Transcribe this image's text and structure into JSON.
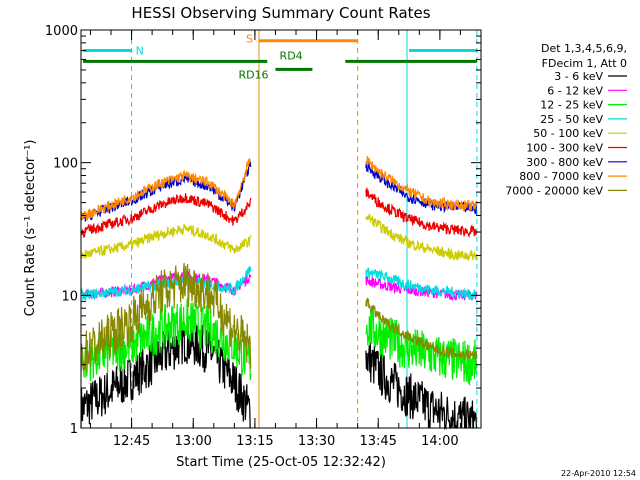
{
  "chart_data": {
    "type": "line",
    "title": "HESSI Observing Summary Count Rates",
    "xlabel": "Start Time (25-Oct-05 12:32:42)",
    "ylabel": "Count Rate (s⁻¹ detector⁻¹)",
    "y_scale": "log",
    "ylim": [
      1,
      1000
    ],
    "xlim": [
      "12:32:42",
      "14:10:00"
    ],
    "x_ticks": [
      "12:45",
      "13:00",
      "13:15",
      "13:30",
      "13:45",
      "14:00"
    ],
    "y_ticks": [
      "1",
      "10",
      "100",
      "1000"
    ],
    "legend_header": [
      "Det 1,3,4,5,6,9,",
      "FDecim 1, Att 0"
    ],
    "legend_position": "right",
    "series": [
      {
        "name": "3 - 6 keV",
        "color": "#000000",
        "segments": [
          {
            "x": [
              "12:32:42",
              "12:45",
              "12:52",
              "12:58",
              "13:04",
              "13:10",
              "13:14"
            ],
            "y": [
              1.4,
              2.4,
              3.4,
              4.6,
              3.8,
              2.2,
              1.3
            ]
          },
          {
            "x": [
              "13:42",
              "13:46",
              "13:52",
              "13:58",
              "14:04",
              "14:09"
            ],
            "y": [
              3.5,
              2.5,
              1.8,
              1.4,
              1.2,
              1.1
            ]
          }
        ]
      },
      {
        "name": "6 - 12 keV",
        "color": "#ff00ff",
        "segments": [
          {
            "x": [
              "12:32:42",
              "12:45",
              "12:52",
              "12:58",
              "13:04",
              "13:10",
              "13:14"
            ],
            "y": [
              10,
              11,
              13,
              14,
              13,
              11,
              14
            ]
          },
          {
            "x": [
              "13:42",
              "13:46",
              "13:52",
              "13:58",
              "14:04",
              "14:09"
            ],
            "y": [
              13,
              12,
              11,
              10.5,
              10,
              10
            ]
          }
        ]
      },
      {
        "name": "12 - 25 keV",
        "color": "#00ee00",
        "segments": [
          {
            "x": [
              "12:32:42",
              "12:45",
              "12:52",
              "12:58",
              "13:04",
              "13:10",
              "13:14"
            ],
            "y": [
              3.2,
              4.2,
              5.5,
              6.5,
              5.5,
              4.2,
              3.0
            ]
          },
          {
            "x": [
              "13:42",
              "13:46",
              "13:52",
              "13:58",
              "14:04",
              "14:09"
            ],
            "y": [
              6.0,
              5.0,
              4.0,
              3.5,
              3.2,
              3.1
            ]
          }
        ]
      },
      {
        "name": "25 - 50 keV",
        "color": "#00dddd",
        "segments": [
          {
            "x": [
              "12:32:42",
              "12:45",
              "12:52",
              "12:58",
              "13:04",
              "13:10",
              "13:14"
            ],
            "y": [
              10,
              11,
              12,
              13,
              12,
              11,
              16
            ]
          },
          {
            "x": [
              "13:42",
              "13:46",
              "13:52",
              "13:58",
              "14:04",
              "14:09"
            ],
            "y": [
              15,
              14,
              12,
              11,
              10.5,
              10
            ]
          }
        ]
      },
      {
        "name": "50 - 100 keV",
        "color": "#cccc00",
        "segments": [
          {
            "x": [
              "12:32:42",
              "12:45",
              "12:52",
              "12:58",
              "13:04",
              "13:10",
              "13:14"
            ],
            "y": [
              20,
              24,
              29,
              32,
              28,
              22,
              26
            ]
          },
          {
            "x": [
              "13:42",
              "13:46",
              "13:52",
              "13:58",
              "14:04",
              "14:09"
            ],
            "y": [
              40,
              32,
              25,
              22,
              20,
              20
            ]
          }
        ]
      },
      {
        "name": "100 - 300 keV",
        "color": "#ee0000",
        "segments": [
          {
            "x": [
              "12:32:42",
              "12:45",
              "12:52",
              "12:58",
              "13:04",
              "13:10",
              "13:14"
            ],
            "y": [
              30,
              38,
              48,
              55,
              48,
              36,
              50
            ]
          },
          {
            "x": [
              "13:42",
              "13:46",
              "13:52",
              "13:58",
              "14:04",
              "14:09"
            ],
            "y": [
              60,
              48,
              38,
              33,
              31,
              30
            ]
          }
        ]
      },
      {
        "name": "300 - 800 keV",
        "color": "#0000cc",
        "segments": [
          {
            "x": [
              "12:32:42",
              "12:45",
              "12:52",
              "12:58",
              "13:04",
              "13:10",
              "13:14"
            ],
            "y": [
              38,
              52,
              66,
              76,
              66,
              46,
              100
            ]
          },
          {
            "x": [
              "13:42",
              "13:46",
              "13:52",
              "13:58",
              "14:04",
              "14:09"
            ],
            "y": [
              95,
              75,
              56,
              48,
              46,
              45
            ]
          }
        ]
      },
      {
        "name": "800 - 7000 keV",
        "color": "#ff8800",
        "segments": [
          {
            "x": [
              "12:32:42",
              "12:45",
              "12:52",
              "12:58",
              "13:04",
              "13:10",
              "13:14"
            ],
            "y": [
              39,
              55,
              70,
              80,
              70,
              48,
              110
            ]
          },
          {
            "x": [
              "13:42",
              "13:46",
              "13:52",
              "13:58",
              "14:04",
              "14:09"
            ],
            "y": [
              105,
              82,
              62,
              50,
              48,
              47
            ]
          }
        ]
      },
      {
        "name": "7000 - 20000 keV",
        "color": "#888800",
        "segments": [
          {
            "x": [
              "12:32:42",
              "12:45",
              "12:52",
              "12:58",
              "13:04",
              "13:10",
              "13:14"
            ],
            "y": [
              3.5,
              6.5,
              10.5,
              12.5,
              10.5,
              5.5,
              4.0
            ]
          },
          {
            "x": [
              "13:42",
              "13:46",
              "13:52",
              "13:58",
              "14:04",
              "14:09"
            ],
            "y": [
              9.0,
              6.5,
              5.0,
              4.0,
              3.6,
              3.5
            ]
          }
        ]
      }
    ],
    "annotations": {
      "night_label": "N",
      "saa_label": "S",
      "rd4_label": "RD4",
      "rd16_label": "RD16",
      "night_bars": [
        {
          "x": [
            "12:32:42",
            "12:45"
          ],
          "y": 700
        },
        {
          "x": [
            "13:52",
            "14:09"
          ],
          "y": 700
        }
      ],
      "night_lines": [
        "12:32:42",
        "12:45",
        "13:52",
        "14:09"
      ],
      "saa_bar": {
        "x": [
          "13:16",
          "13:40"
        ],
        "y": 830
      },
      "saa_lines": [
        "13:16",
        "13:40"
      ],
      "rd4_bar": {
        "x": [
          "12:32:42",
          "14:09"
        ],
        "y": 580
      },
      "rd16_bar": {
        "x": [
          "13:20",
          "13:29"
        ],
        "y": 505
      }
    },
    "footer_date": "22-Apr-2010 12:54"
  }
}
